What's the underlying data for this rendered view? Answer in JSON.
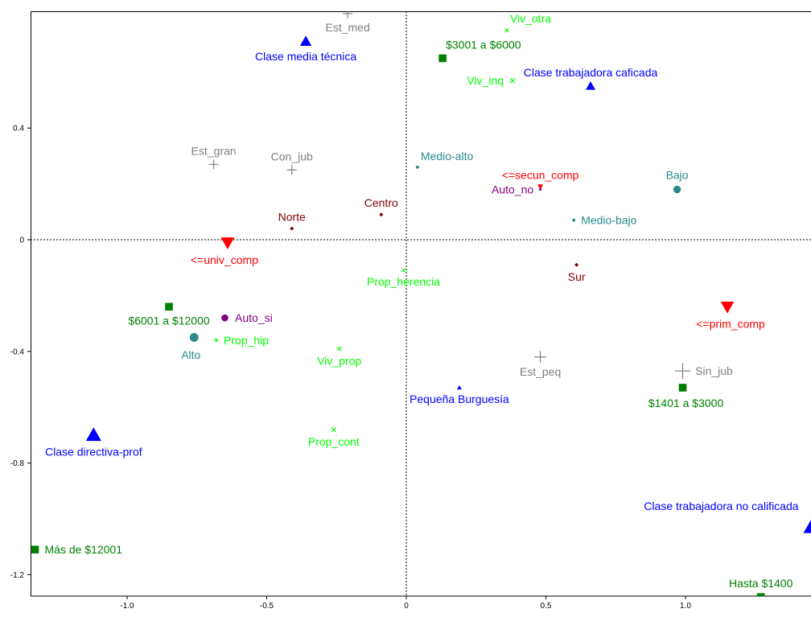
{
  "chart_data": {
    "type": "scatter",
    "xlim": [
      -1.33,
      1.45
    ],
    "ylim": [
      -1.27,
      0.82
    ],
    "grid": false,
    "x_ticks": [
      {
        "value": -1.0,
        "label": "-1.0"
      },
      {
        "value": -0.5,
        "label": "-0.5"
      },
      {
        "value": 0.0,
        "label": "0"
      },
      {
        "value": 0.5,
        "label": "0.5"
      },
      {
        "value": 1.0,
        "label": "1.0"
      }
    ],
    "y_ticks": [
      {
        "value": 0.4,
        "label": "0.4"
      },
      {
        "value": 0.0,
        "label": "0"
      },
      {
        "value": -0.4,
        "label": "-0.4"
      },
      {
        "value": -0.8,
        "label": "-0.8"
      },
      {
        "value": -1.2,
        "label": "-1.2"
      }
    ],
    "reference_lines": {
      "x": 0,
      "y": 0,
      "style": "dotted"
    },
    "series": [
      {
        "color": "#0000ff",
        "marker": "triangle-up",
        "points": [
          {
            "label": "Clase media técnica",
            "x": -0.36,
            "y": 0.71,
            "size": 1.2,
            "label_pos": "below"
          },
          {
            "label": "Clase trabajadora caficada",
            "x": 0.66,
            "y": 0.55,
            "size": 1.0,
            "label_pos": "above"
          },
          {
            "label": "Pequeña Burguesía",
            "x": 0.19,
            "y": -0.53,
            "size": 0.5,
            "label_pos": "below"
          },
          {
            "label": "Clase directiva-prof",
            "x": -1.12,
            "y": -0.7,
            "size": 1.6,
            "label_pos": "below"
          },
          {
            "label": "Clase trabajadora no calificada",
            "x": 1.45,
            "y": -1.03,
            "size": 1.6,
            "label_pos": "above-left"
          }
        ]
      },
      {
        "color": "#808080",
        "marker": "plus",
        "points": [
          {
            "label": "Est_med",
            "x": -0.21,
            "y": 0.81,
            "size": 1.0,
            "label_pos": "below"
          },
          {
            "label": "Est_gran",
            "x": -0.69,
            "y": 0.27,
            "size": 1.0,
            "label_pos": "above"
          },
          {
            "label": "Con_jub",
            "x": -0.41,
            "y": 0.25,
            "size": 1.0,
            "label_pos": "above"
          },
          {
            "label": "Est_peq",
            "x": 0.48,
            "y": -0.42,
            "size": 1.2,
            "label_pos": "below"
          },
          {
            "label": "Sin_jub",
            "x": 0.99,
            "y": -0.47,
            "size": 1.6,
            "label_pos": "right"
          }
        ]
      },
      {
        "color": "#00ff00",
        "marker": "cross",
        "points": [
          {
            "label": "Viv_otra",
            "x": 0.36,
            "y": 0.75,
            "size": 0.6,
            "label_pos": "above-right"
          },
          {
            "label": "Viv_inq",
            "x": 0.38,
            "y": 0.57,
            "size": 0.8,
            "label_pos": "left"
          },
          {
            "label": "Prop_herencia",
            "x": -0.01,
            "y": -0.11,
            "size": 0.5,
            "label_pos": "below"
          },
          {
            "label": "Prop_hip",
            "x": -0.68,
            "y": -0.36,
            "size": 0.5,
            "label_pos": "right"
          },
          {
            "label": "Viv_prop",
            "x": -0.24,
            "y": -0.39,
            "size": 0.7,
            "label_pos": "below"
          },
          {
            "label": "Prop_cont",
            "x": -0.26,
            "y": -0.68,
            "size": 0.7,
            "label_pos": "below"
          }
        ]
      },
      {
        "color": "#008000",
        "marker": "square",
        "points": [
          {
            "label": "$3001 a $6000",
            "x": 0.13,
            "y": 0.65,
            "size": 1.0,
            "label_pos": "above-right"
          },
          {
            "label": "$6001 a $12000",
            "x": -0.85,
            "y": -0.24,
            "size": 1.0,
            "label_pos": "below"
          },
          {
            "label": "$1401 a $3000",
            "x": 0.99,
            "y": -0.53,
            "size": 1.0,
            "label_pos": "below-right"
          },
          {
            "label": "Más de $12001",
            "x": -1.33,
            "y": -1.11,
            "size": 1.0,
            "label_pos": "right"
          },
          {
            "label": "Hasta $1400",
            "x": 1.27,
            "y": -1.28,
            "size": 1.0,
            "label_pos": "above"
          }
        ]
      },
      {
        "color": "#2a8a8a",
        "marker": "circle",
        "points": [
          {
            "label": "Medio-alto",
            "x": 0.04,
            "y": 0.26,
            "size": 0.5,
            "label_pos": "above-right"
          },
          {
            "label": "Bajo",
            "x": 0.97,
            "y": 0.18,
            "size": 1.2,
            "label_pos": "above"
          },
          {
            "label": "Medio-bajo",
            "x": 0.6,
            "y": 0.07,
            "size": 0.5,
            "label_pos": "right"
          },
          {
            "label": "Alto",
            "x": -0.76,
            "y": -0.35,
            "size": 1.4,
            "label_pos": "below-left"
          }
        ]
      },
      {
        "color": "#ff0000",
        "marker": "triangle-down",
        "points": [
          {
            "label": "<=secun_comp",
            "x": 0.48,
            "y": 0.19,
            "size": 0.6,
            "label_pos": "above"
          },
          {
            "label": "<=univ_comp",
            "x": -0.64,
            "y": -0.01,
            "size": 1.4,
            "label_pos": "below-left"
          },
          {
            "label": "<=prim_comp",
            "x": 1.15,
            "y": -0.24,
            "size": 1.4,
            "label_pos": "below-right"
          }
        ]
      },
      {
        "color": "#800000",
        "marker": "diamond",
        "points": [
          {
            "label": "Norte",
            "x": -0.41,
            "y": 0.04,
            "size": 0.6,
            "label_pos": "above"
          },
          {
            "label": "Centro",
            "x": -0.09,
            "y": 0.09,
            "size": 0.6,
            "label_pos": "above"
          },
          {
            "label": "Sur",
            "x": 0.61,
            "y": -0.09,
            "size": 0.6,
            "label_pos": "below"
          }
        ]
      },
      {
        "color": "#800080",
        "marker": "circle",
        "points": [
          {
            "label": "Auto_no",
            "x": 0.48,
            "y": 0.18,
            "size": 0.4,
            "label_pos": "left"
          },
          {
            "label": "Auto_si",
            "x": -0.65,
            "y": -0.28,
            "size": 1.1,
            "label_pos": "right"
          }
        ]
      }
    ]
  }
}
